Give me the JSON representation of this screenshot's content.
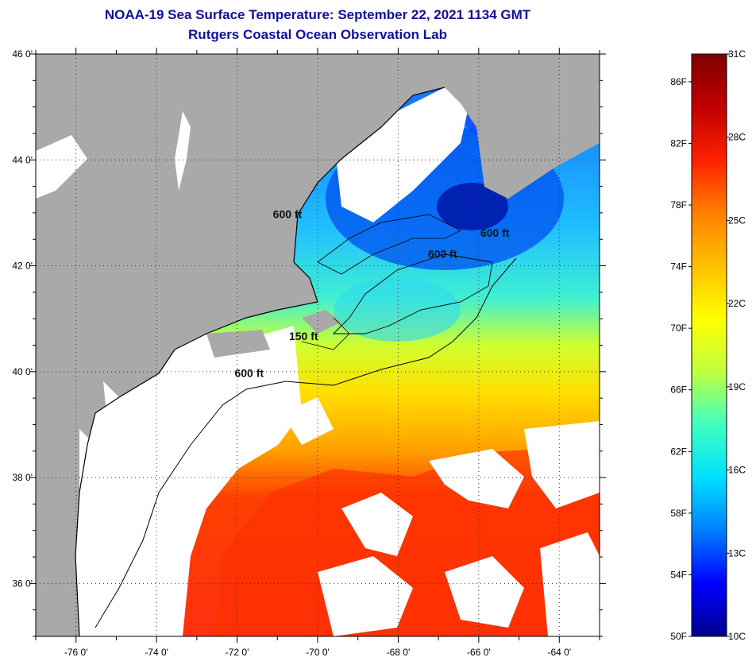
{
  "header": {
    "title": "NOAA-19 Sea Surface Temperature:  September 22, 2021 1134 GMT",
    "subtitle": "Rutgers Coastal Ocean Observation Lab"
  },
  "map": {
    "lon_range": [
      -77,
      -63
    ],
    "lat_range": [
      35,
      46
    ],
    "lon_ticks": [
      {
        "value": -76,
        "label": "-76 0'"
      },
      {
        "value": -74,
        "label": "-74 0'"
      },
      {
        "value": -72,
        "label": "-72 0'"
      },
      {
        "value": -70,
        "label": "-70 0'"
      },
      {
        "value": -68,
        "label": "-68 0'"
      },
      {
        "value": -66,
        "label": "-66 0'"
      },
      {
        "value": -64,
        "label": "-64 0'"
      }
    ],
    "lat_ticks": [
      {
        "value": 46,
        "label": "46 0'"
      },
      {
        "value": 44,
        "label": "44 0'"
      },
      {
        "value": 42,
        "label": "42 0'"
      },
      {
        "value": 40,
        "label": "40 0'"
      },
      {
        "value": 38,
        "label": "38 0'"
      },
      {
        "value": 36,
        "label": "36 0'"
      }
    ],
    "grid": "dotted",
    "land_color": "#a9a9a9",
    "cloud_color": "#ffffff",
    "contour_labels": [
      {
        "text": "600 ft",
        "lon": -70.75,
        "lat": 42.9
      },
      {
        "text": "600 ft",
        "lon": -65.6,
        "lat": 42.55
      },
      {
        "text": "600 ft",
        "lon": -66.9,
        "lat": 42.15
      },
      {
        "text": "150 ft",
        "lon": -70.35,
        "lat": 40.6
      },
      {
        "text": "600 ft",
        "lon": -71.7,
        "lat": 39.9
      }
    ]
  },
  "colorbar": {
    "range_c": [
      10,
      31
    ],
    "c_labels": [
      {
        "value": 31,
        "label": "31C"
      },
      {
        "value": 28,
        "label": "28C"
      },
      {
        "value": 25,
        "label": "25C"
      },
      {
        "value": 22,
        "label": "22C"
      },
      {
        "value": 19,
        "label": "19C"
      },
      {
        "value": 16,
        "label": "16C"
      },
      {
        "value": 13,
        "label": "13C"
      },
      {
        "value": 10,
        "label": "10C"
      }
    ],
    "f_labels": [
      {
        "value": 86,
        "label": "86F"
      },
      {
        "value": 82,
        "label": "82F"
      },
      {
        "value": 78,
        "label": "78F"
      },
      {
        "value": 74,
        "label": "74F"
      },
      {
        "value": 70,
        "label": "70F"
      },
      {
        "value": 66,
        "label": "66F"
      },
      {
        "value": 62,
        "label": "62F"
      },
      {
        "value": 58,
        "label": "58F"
      },
      {
        "value": 54,
        "label": "54F"
      },
      {
        "value": 50,
        "label": "50F"
      }
    ],
    "colors": [
      "#00008f",
      "#0000ff",
      "#0080ff",
      "#00e0ff",
      "#40ffc0",
      "#c0ff40",
      "#ffff00",
      "#ffc000",
      "#ff8000",
      "#ff2000",
      "#c00000",
      "#800000"
    ]
  }
}
